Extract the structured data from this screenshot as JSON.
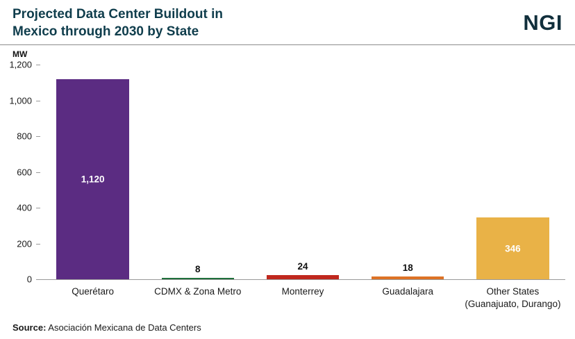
{
  "header": {
    "title": "Projected Data Center Buildout in\nMexico through 2030 by State",
    "logo": "NGI"
  },
  "footer": {
    "source_label": "Source:",
    "source_text": " Asociación Mexicana de Data Centers"
  },
  "chart_data": {
    "type": "bar",
    "title": "Projected Data Center Buildout in Mexico through 2030 by State",
    "xlabel": "",
    "ylabel": "MW",
    "ylim": [
      0,
      1200
    ],
    "categories": [
      "Querétaro",
      "CDMX & Zona Metro",
      "Monterrey",
      "Guadalajara",
      "Other States\n(Guanajuato, Durango)"
    ],
    "values": [
      1120,
      8,
      24,
      18,
      346
    ],
    "value_labels": [
      "1,120",
      "8",
      "24",
      "18",
      "346"
    ],
    "bar_colors": [
      "#5b2c82",
      "#20703c",
      "#c0281e",
      "#dd7226",
      "#e9b247"
    ],
    "y_ticks": [
      {
        "label": "1,200",
        "value": 1200
      },
      {
        "label": "1,000",
        "value": 1000
      },
      {
        "label": "800",
        "value": 800
      },
      {
        "label": "600",
        "value": 600
      },
      {
        "label": "400",
        "value": 400
      },
      {
        "label": "200",
        "value": 200
      },
      {
        "label": "0",
        "value": 0
      }
    ],
    "grid": false,
    "legend": false
  }
}
